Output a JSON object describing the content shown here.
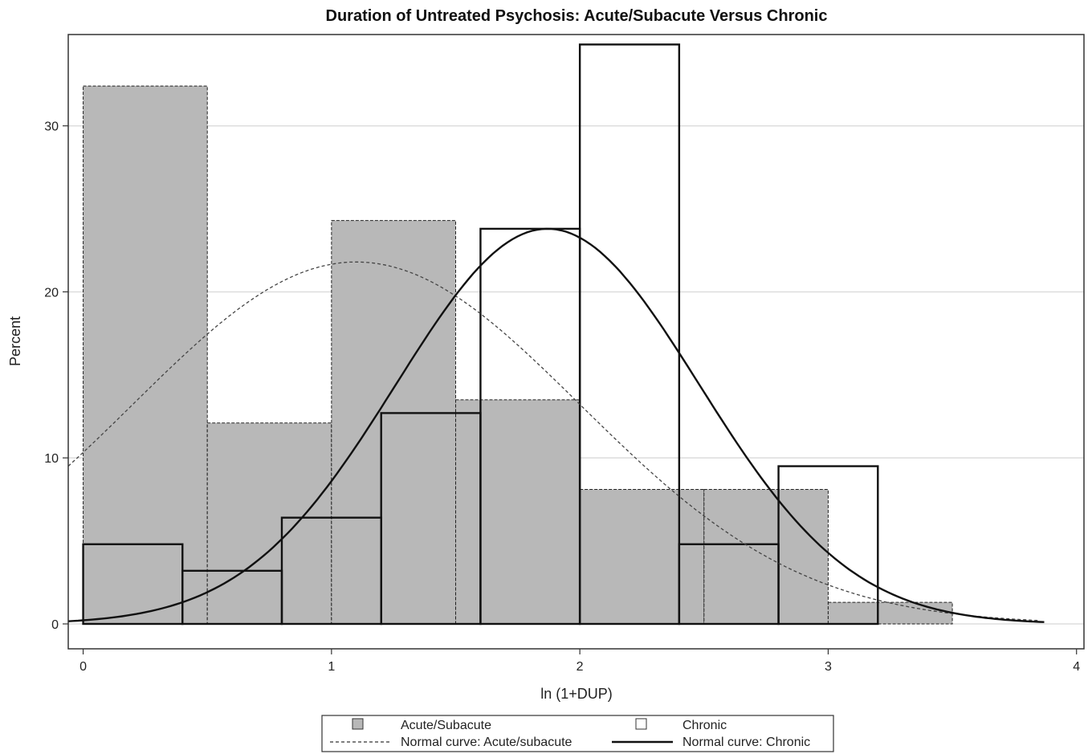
{
  "chart_data": {
    "type": "histogram",
    "title": "Duration of Untreated Psychosis: Acute/Subacute Versus Chronic",
    "xlabel": "ln (1+DUP)",
    "ylabel": "Percent",
    "xlim": [
      -0.06,
      4.03
    ],
    "ylim": [
      -1.5,
      35.5
    ],
    "x_ticks": [
      0,
      1,
      2,
      3,
      4
    ],
    "x_tick_labels": [
      "0",
      "1",
      "2",
      "3",
      "4"
    ],
    "y_ticks": [
      0,
      10,
      20,
      30
    ],
    "y_tick_labels": [
      "0",
      "10",
      "20",
      "30"
    ],
    "grid": "horizontal",
    "legend_position": "bottom",
    "colors": {
      "acute_fill": "#b8b8b8",
      "chronic_fill": "none",
      "line": "#111111"
    },
    "series": [
      {
        "name": "Acute/Subacute",
        "kind": "histogram",
        "bins": [
          {
            "x0": 0.0,
            "x1": 0.5,
            "value": 32.4
          },
          {
            "x0": 0.5,
            "x1": 1.0,
            "value": 12.1
          },
          {
            "x0": 1.0,
            "x1": 1.5,
            "value": 24.3
          },
          {
            "x0": 1.5,
            "x1": 2.0,
            "value": 13.5
          },
          {
            "x0": 2.0,
            "x1": 2.5,
            "value": 8.1
          },
          {
            "x0": 2.5,
            "x1": 3.0,
            "value": 8.1
          },
          {
            "x0": 3.0,
            "x1": 3.5,
            "value": 1.3
          }
        ]
      },
      {
        "name": "Chronic",
        "kind": "histogram",
        "bins": [
          {
            "x0": 0.0,
            "x1": 0.4,
            "value": 4.8
          },
          {
            "x0": 0.4,
            "x1": 0.8,
            "value": 3.2
          },
          {
            "x0": 0.8,
            "x1": 1.2,
            "value": 6.4
          },
          {
            "x0": 1.2,
            "x1": 1.6,
            "value": 12.7
          },
          {
            "x0": 1.6,
            "x1": 2.0,
            "value": 23.8
          },
          {
            "x0": 2.0,
            "x1": 2.4,
            "value": 34.9
          },
          {
            "x0": 2.4,
            "x1": 2.8,
            "value": 4.8
          },
          {
            "x0": 2.8,
            "x1": 3.2,
            "value": 9.5
          }
        ]
      },
      {
        "name": "Normal curve: Acute/subacute",
        "kind": "normal_curve",
        "style": "dashed",
        "mean": 1.1,
        "peak": 21.8,
        "sd": 0.9,
        "x_range": [
          -0.06,
          3.85
        ]
      },
      {
        "name": "Normal curve: Chronic",
        "kind": "normal_curve",
        "style": "solid",
        "mean": 1.87,
        "peak": 23.8,
        "sd": 0.61,
        "x_range": [
          -0.06,
          3.87
        ]
      }
    ]
  },
  "legend": {
    "items": [
      {
        "label": "Acute/Subacute"
      },
      {
        "label": "Chronic"
      },
      {
        "label": "Normal curve: Acute/subacute"
      },
      {
        "label": "Normal curve: Chronic"
      }
    ]
  }
}
